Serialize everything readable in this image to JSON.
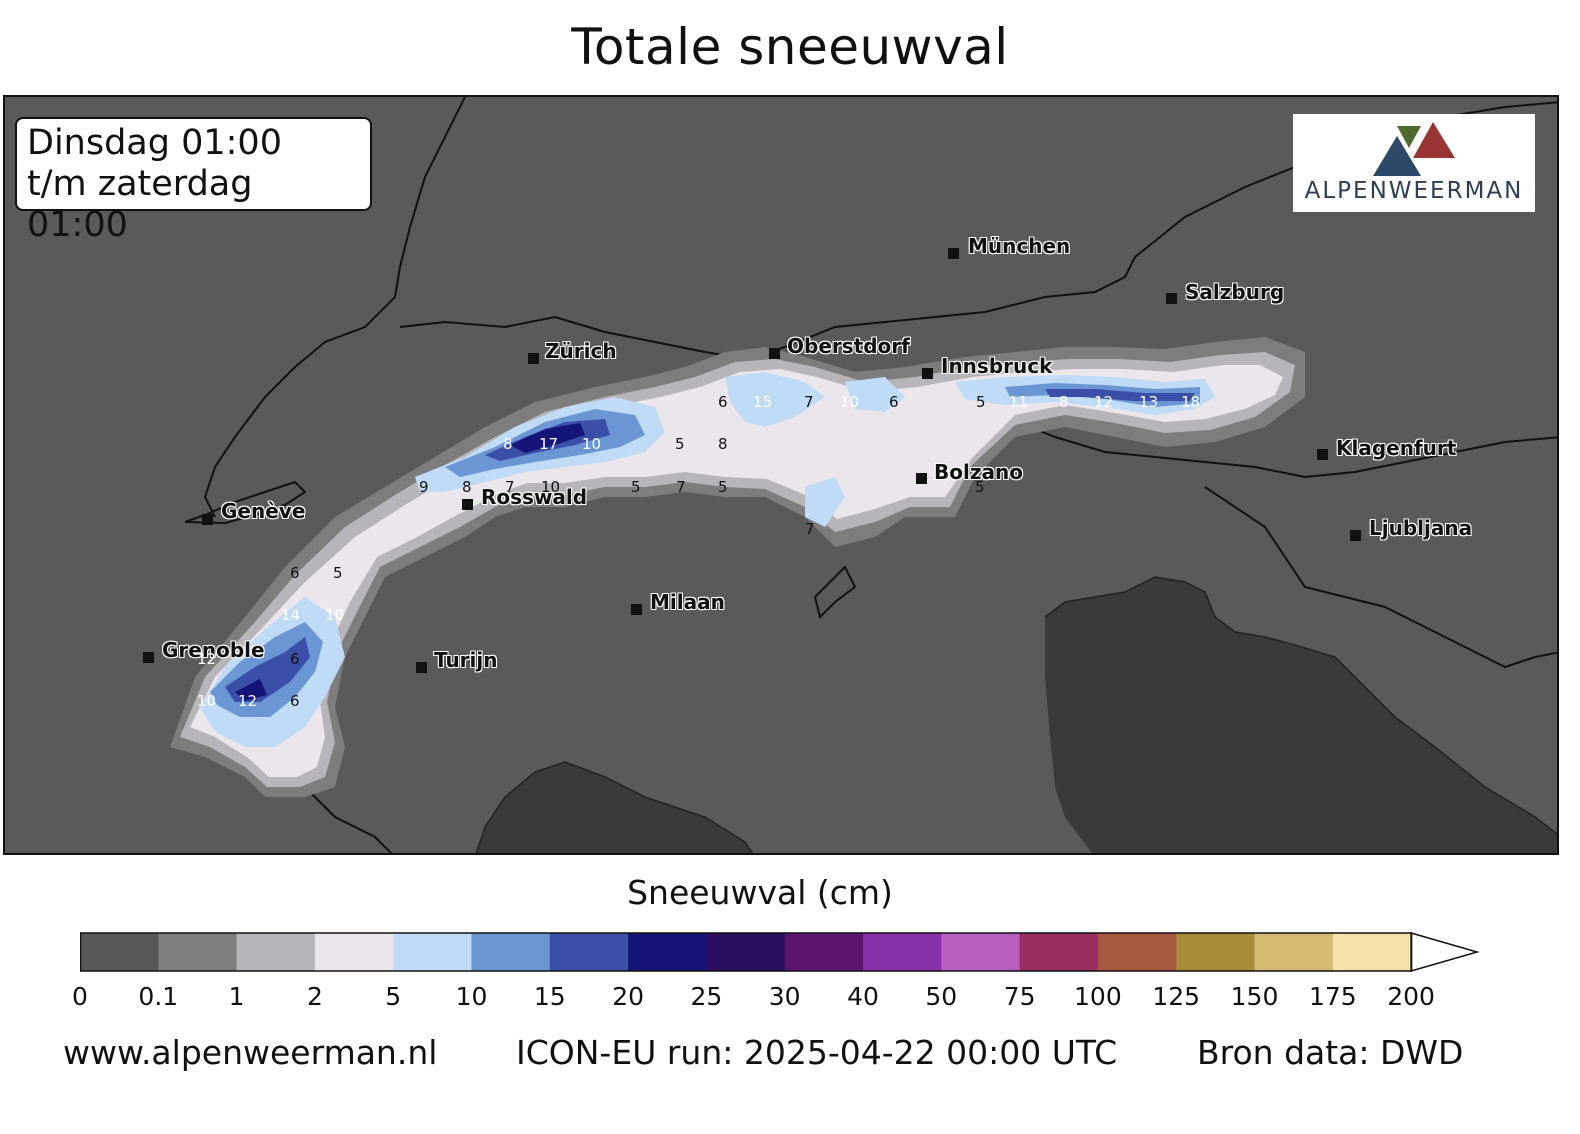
{
  "title": "Totale sneeuwval",
  "period": {
    "line1": "Dinsdag 01:00",
    "line2": "t/m zaterdag 01:00"
  },
  "logo_text": "ALPENWEERMAN",
  "cities": [
    {
      "id": "munchen",
      "label": "München"
    },
    {
      "id": "salzburg",
      "label": "Salzburg"
    },
    {
      "id": "zurich",
      "label": "Zürich"
    },
    {
      "id": "oberstdorf",
      "label": "Oberstdorf"
    },
    {
      "id": "innsbruck",
      "label": "Innsbruck"
    },
    {
      "id": "klagenfurt",
      "label": "Klagenfurt"
    },
    {
      "id": "bolzano",
      "label": "Bolzano"
    },
    {
      "id": "geneve",
      "label": "Genève"
    },
    {
      "id": "rosswald",
      "label": "Rosswald"
    },
    {
      "id": "ljubljana",
      "label": "Ljubljana"
    },
    {
      "id": "milaan",
      "label": "Milaan"
    },
    {
      "id": "grenoble",
      "label": "Grenoble"
    },
    {
      "id": "turijn",
      "label": "Turijn"
    }
  ],
  "values": [
    "6",
    "15",
    "7",
    "10",
    "6",
    "5",
    "11",
    "8",
    "12",
    "13",
    "18",
    "8",
    "17",
    "10",
    "5",
    "8",
    "9",
    "8",
    "7",
    "10",
    "5",
    "7",
    "5",
    "5",
    "7",
    "6",
    "5",
    "14",
    "10",
    "12",
    "6",
    "10",
    "12",
    "6"
  ],
  "colorbar": {
    "label": "Sneeuwval (cm)",
    "ticks": [
      "0",
      "0.1",
      "1",
      "2",
      "5",
      "10",
      "15",
      "20",
      "25",
      "30",
      "40",
      "50",
      "75",
      "100",
      "125",
      "150",
      "175",
      "200"
    ],
    "colors": [
      "#585858",
      "#7d7d7d",
      "#b8b5ba",
      "#ebe6ec",
      "#bfdbf5",
      "#6a96d4",
      "#3b4fa8",
      "#151478",
      "#2a0f60",
      "#5b1570",
      "#8730a8",
      "#b85ec0",
      "#9a2e62",
      "#a65a42",
      "#a88c38",
      "#d4bb72",
      "#f5e0a8"
    ],
    "extend_color": "#ffffff"
  },
  "footer": {
    "website": "www.alpenweerman.nl",
    "run": "ICON-EU run: 2025-04-22 00:00 UTC",
    "source": "Bron data: DWD"
  }
}
